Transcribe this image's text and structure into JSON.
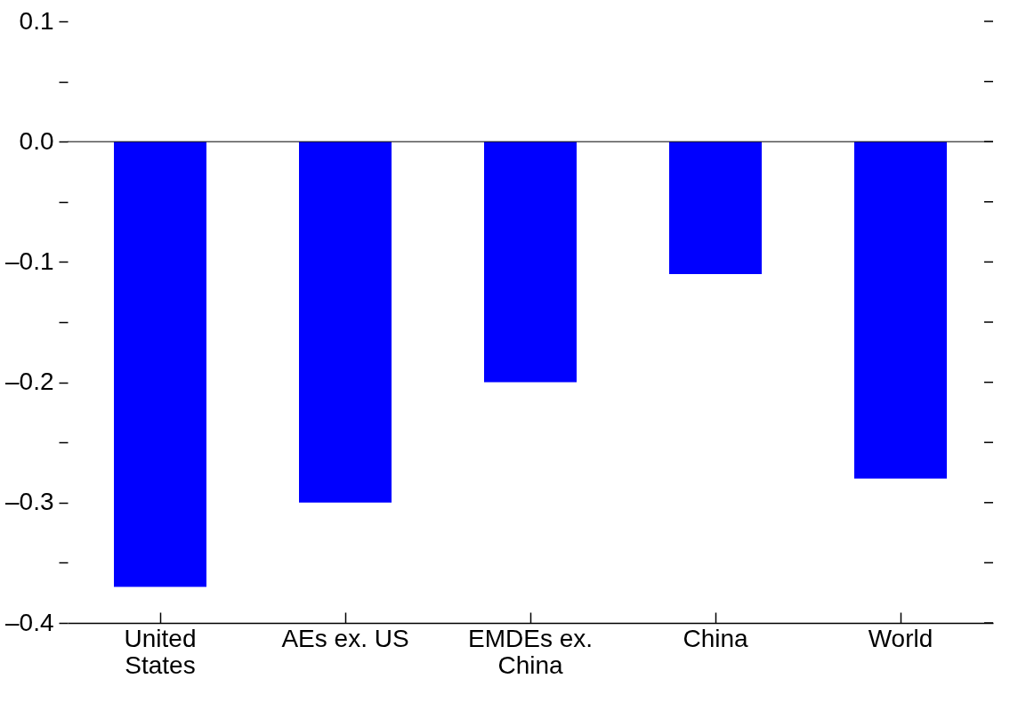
{
  "chart_data": {
    "type": "bar",
    "categories": [
      "United States",
      "AEs ex. US",
      "EMDEs ex. China",
      "China",
      "World"
    ],
    "values": [
      -0.37,
      -0.3,
      -0.2,
      -0.11,
      -0.28
    ],
    "color": "#0000ff",
    "ylim": [
      -0.4,
      0.1
    ],
    "yticks": [
      {
        "value": -0.4,
        "label": "–0.4"
      },
      {
        "value": -0.35,
        "label": null
      },
      {
        "value": -0.3,
        "label": "–0.3"
      },
      {
        "value": -0.25,
        "label": null
      },
      {
        "value": -0.2,
        "label": "–0.2"
      },
      {
        "value": -0.15,
        "label": null
      },
      {
        "value": -0.1,
        "label": "–0.1"
      },
      {
        "value": -0.05,
        "label": null
      },
      {
        "value": 0,
        "label": "0.0"
      },
      {
        "value": 0.05,
        "label": null
      },
      {
        "value": 0.1,
        "label": "0.1"
      }
    ],
    "ref_lines": [
      {
        "axis": "y",
        "value": 0,
        "color": "#000000"
      }
    ],
    "grid": false
  }
}
